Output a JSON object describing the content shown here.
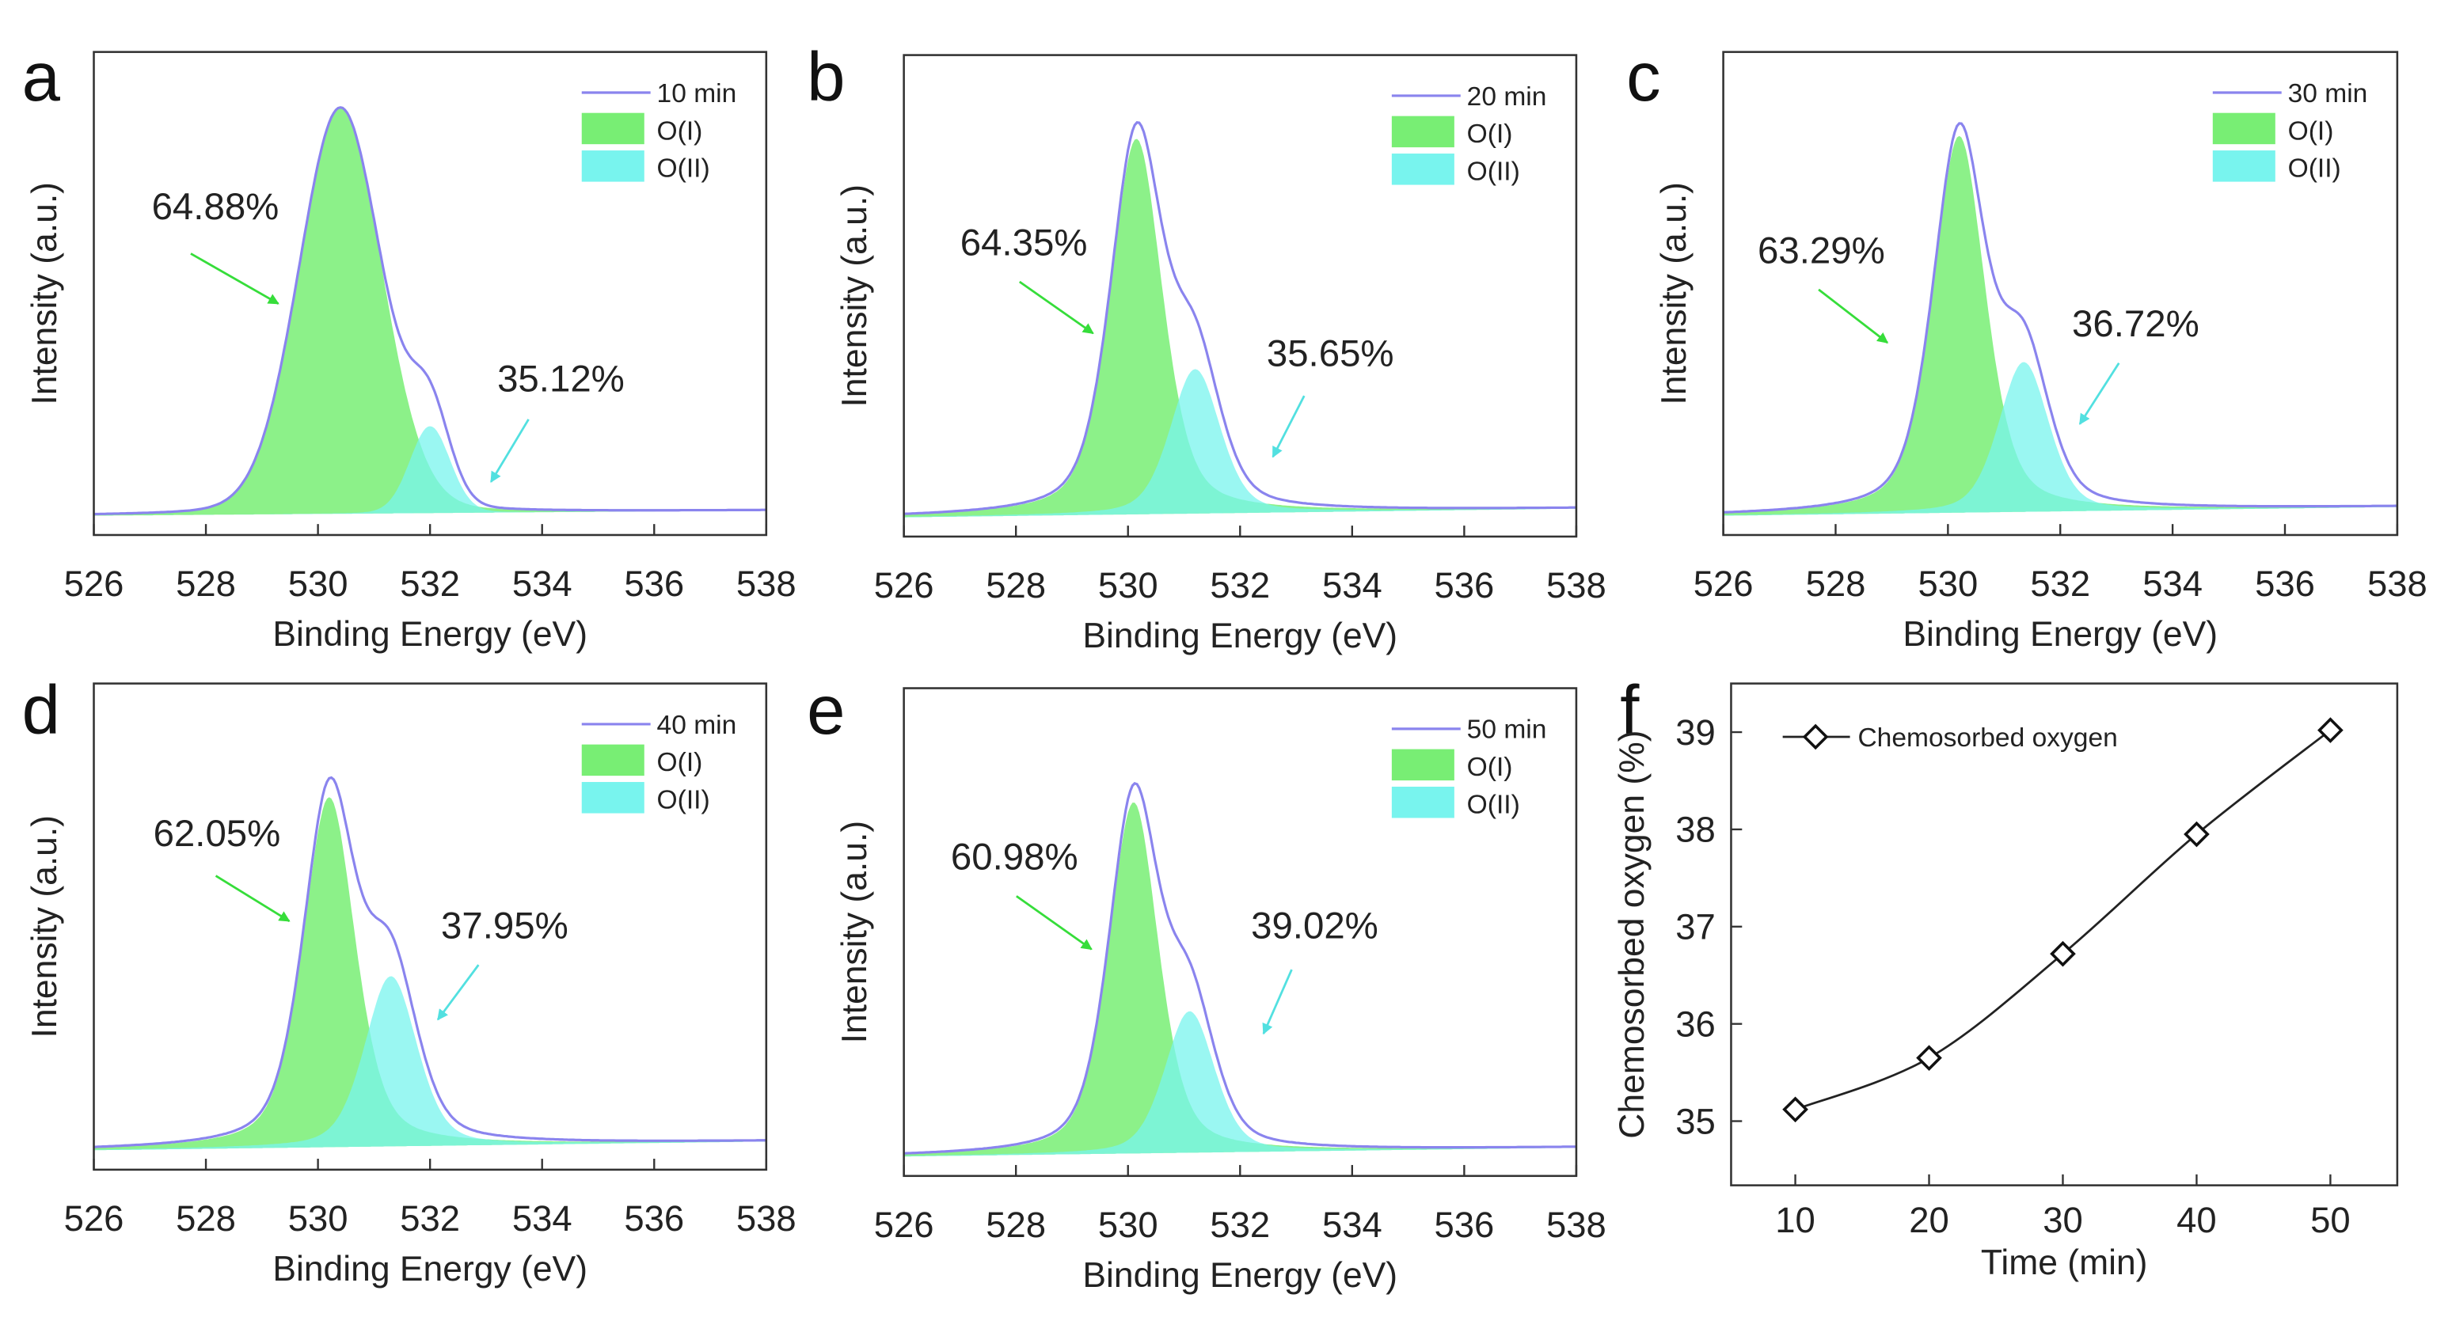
{
  "colors": {
    "envelope": "#8a84ee",
    "o1": "#78ee74",
    "o2": "#78f4ee",
    "arrow_o1": "#36dd3a",
    "arrow_o2": "#52e0e0",
    "line_f": "#222222"
  },
  "chart_data": [
    {
      "panel": "a",
      "type": "area",
      "xlabel": "Binding Energy (eV)",
      "ylabel": "Intensity (a.u.)",
      "xlim": [
        538,
        526
      ],
      "xticks": [
        "526",
        "528",
        "530",
        "532",
        "534",
        "536",
        "538"
      ],
      "legend": [
        "10 min",
        "O(I)",
        "O(II)"
      ],
      "components": [
        {
          "name": "O(I)",
          "center": 530.4,
          "height": 0.84,
          "fwhm": 1.75,
          "lorentz": 0.1,
          "percent": "64.88%"
        },
        {
          "name": "O(II)",
          "center": 532.0,
          "height": 0.18,
          "fwhm": 0.85,
          "lorentz": 0.1,
          "percent": "35.12%"
        }
      ]
    },
    {
      "panel": "b",
      "type": "area",
      "xlabel": "Binding Energy (eV)",
      "ylabel": "Intensity (a.u.)",
      "xlim": [
        538,
        526
      ],
      "xticks": [
        "526",
        "528",
        "530",
        "532",
        "534",
        "536",
        "538"
      ],
      "legend": [
        "20 min",
        "O(I)",
        "O(II)"
      ],
      "components": [
        {
          "name": "O(I)",
          "center": 530.15,
          "height": 0.78,
          "fwhm": 1.1,
          "lorentz": 0.45,
          "percent": "64.35%"
        },
        {
          "name": "O(II)",
          "center": 531.2,
          "height": 0.3,
          "fwhm": 1.05,
          "lorentz": 0.35,
          "percent": "35.65%"
        }
      ]
    },
    {
      "panel": "c",
      "type": "area",
      "xlabel": "Binding Energy (eV)",
      "ylabel": "Intensity (a.u.)",
      "xlim": [
        538,
        526
      ],
      "xticks": [
        "526",
        "528",
        "530",
        "532",
        "534",
        "536",
        "538"
      ],
      "legend": [
        "30 min",
        "O(I)",
        "O(II)"
      ],
      "components": [
        {
          "name": "O(I)",
          "center": 530.2,
          "height": 0.78,
          "fwhm": 1.1,
          "lorentz": 0.45,
          "percent": "63.29%"
        },
        {
          "name": "O(II)",
          "center": 531.35,
          "height": 0.31,
          "fwhm": 1.05,
          "lorentz": 0.35,
          "percent": "36.72%"
        }
      ]
    },
    {
      "panel": "d",
      "type": "area",
      "xlabel": "Binding Energy (eV)",
      "ylabel": "Intensity (a.u.)",
      "xlim": [
        538,
        526
      ],
      "xticks": [
        "526",
        "528",
        "530",
        "532",
        "534",
        "536",
        "538"
      ],
      "legend": [
        "40 min",
        "O(I)",
        "O(II)"
      ],
      "components": [
        {
          "name": "O(I)",
          "center": 530.2,
          "height": 0.72,
          "fwhm": 1.1,
          "lorentz": 0.45,
          "percent": "62.05%"
        },
        {
          "name": "O(II)",
          "center": 531.3,
          "height": 0.35,
          "fwhm": 1.1,
          "lorentz": 0.35,
          "percent": "37.95%"
        }
      ]
    },
    {
      "panel": "e",
      "type": "area",
      "xlabel": "Binding Energy (eV)",
      "ylabel": "Intensity (a.u.)",
      "xlim": [
        538,
        526
      ],
      "xticks": [
        "526",
        "528",
        "530",
        "532",
        "534",
        "536",
        "538"
      ],
      "legend": [
        "50 min",
        "O(I)",
        "O(II)"
      ],
      "components": [
        {
          "name": "O(I)",
          "center": 530.1,
          "height": 0.72,
          "fwhm": 1.05,
          "lorentz": 0.45,
          "percent": "60.98%"
        },
        {
          "name": "O(II)",
          "center": 531.1,
          "height": 0.29,
          "fwhm": 1.05,
          "lorentz": 0.35,
          "percent": "39.02%"
        }
      ]
    },
    {
      "panel": "f",
      "type": "line",
      "xlabel": "Time (min)",
      "ylabel": "Chemosorbed oxygen (%)",
      "x": [
        10,
        20,
        30,
        40,
        50
      ],
      "y": [
        35.12,
        35.65,
        36.72,
        37.95,
        39.02
      ],
      "xlim": [
        5.2,
        55
      ],
      "ylim": [
        34.34,
        39.5
      ],
      "xticks": [
        "10",
        "20",
        "30",
        "40",
        "50"
      ],
      "yticks": [
        "35",
        "36",
        "37",
        "38",
        "39"
      ],
      "legend": [
        "Chemosorbed oxygen"
      ],
      "legend_position": "top-left",
      "marker": "diamond"
    }
  ]
}
